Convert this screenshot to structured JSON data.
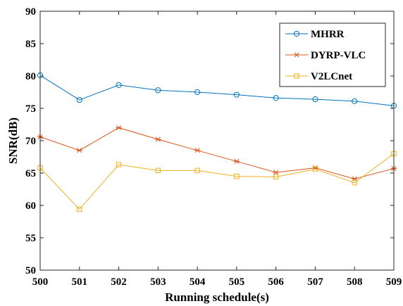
{
  "chart_data": {
    "type": "line",
    "xlabel": "Running schedule(s)",
    "ylabel": "SNR(dB)",
    "x": [
      500,
      501,
      502,
      503,
      504,
      505,
      506,
      507,
      508,
      509
    ],
    "xlim": [
      500,
      509
    ],
    "ylim": [
      50,
      90
    ],
    "yticks": [
      50,
      55,
      60,
      65,
      70,
      75,
      80,
      85,
      90
    ],
    "grid": false,
    "legend_position": "top-right",
    "series": [
      {
        "name": "MHRR",
        "color": "#0072BD",
        "marker": "circle",
        "values": [
          80.1,
          76.3,
          78.6,
          77.8,
          77.5,
          77.1,
          76.6,
          76.4,
          76.1,
          75.4
        ]
      },
      {
        "name": "DYRP-VLC",
        "color": "#D95319",
        "marker": "asterisk",
        "values": [
          70.6,
          68.5,
          72.0,
          70.2,
          68.5,
          66.8,
          65.1,
          65.8,
          64.1,
          65.7
        ]
      },
      {
        "name": "V2LCnet",
        "color": "#EDB120",
        "marker": "square",
        "values": [
          65.8,
          59.4,
          66.3,
          65.4,
          65.4,
          64.5,
          64.4,
          65.6,
          63.5,
          68.0
        ]
      }
    ]
  }
}
